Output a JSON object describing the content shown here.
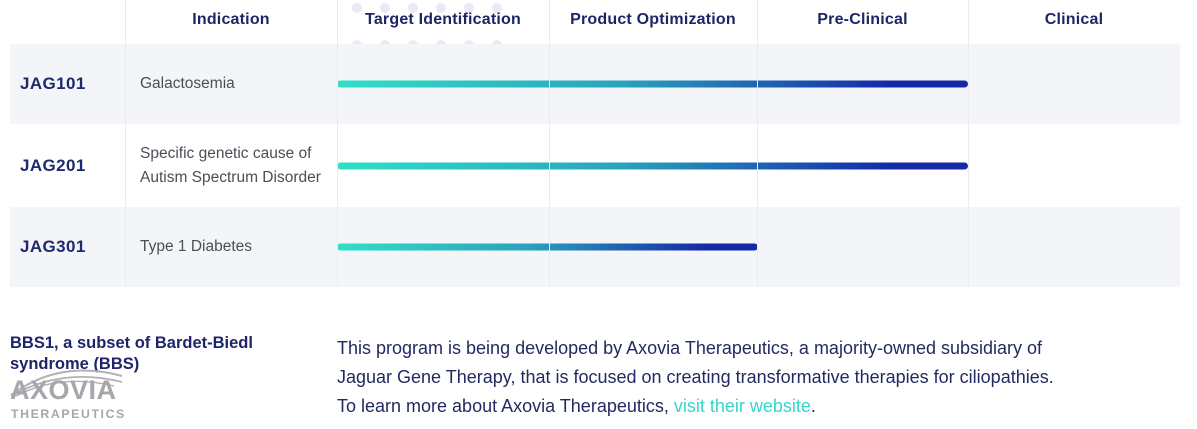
{
  "colors": {
    "navy_text": "#1e2566",
    "program_navy": "#1e2a6e",
    "indication_text": "#4c4e58",
    "row_stripe": "#f4f5f8",
    "divider": "#ebecf1",
    "bar_gradient_start": "#2ee0c6",
    "bar_gradient_mid": "#2aa3bd",
    "bar_gradient_end": "#1528a8",
    "link_teal": "#36d5c8",
    "logo_gray": "#a7a7ab",
    "dot_pattern": "#e9eaf6"
  },
  "table": {
    "columns": [
      "Indication",
      "Target Identification",
      "Product Optimization",
      "Pre-Clinical",
      "Clinical"
    ],
    "stage_columns": [
      "Target Identification",
      "Product Optimization",
      "Pre-Clinical",
      "Clinical"
    ],
    "rows": [
      {
        "program": "JAG101",
        "indication": "Galactosemia",
        "stages_completed": 3,
        "progress_through": "Pre-Clinical"
      },
      {
        "program": "JAG201",
        "indication": "Specific genetic cause of Autism Spectrum Disorder",
        "stages_completed": 3,
        "progress_through": "Pre-Clinical"
      },
      {
        "program": "JAG301",
        "indication": "Type 1 Diabetes",
        "stages_completed": 2,
        "progress_through": "Product Optimization"
      }
    ]
  },
  "footer": {
    "heading": "BBS1, a subset of Bardet-Biedl syndrome (BBS)",
    "logo": {
      "wordmark": "AXOVIA",
      "subtitle": "THERAPEUTICS"
    },
    "paragraph_lines": [
      "This program is being developed by Axovia Therapeutics, a majority-owned subsidiary of",
      "Jaguar Gene Therapy, that is focused on creating transformative therapies for ciliopathies.",
      "To learn more about Axovia Therapeutics, "
    ],
    "link_text": "visit their website",
    "after_link": "."
  }
}
